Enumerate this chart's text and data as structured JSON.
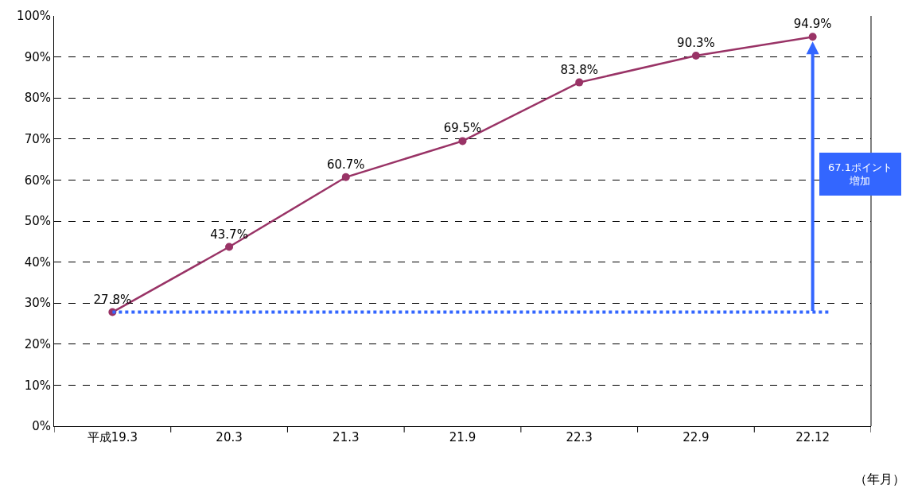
{
  "chart_data": {
    "type": "line",
    "xlabel": "（年月）",
    "categories": [
      "平成19.3",
      "20.3",
      "21.3",
      "21.9",
      "22.3",
      "22.9",
      "22.12"
    ],
    "series": [
      {
        "color": "#993366",
        "values": [
          27.8,
          43.7,
          60.7,
          69.5,
          83.8,
          90.3,
          94.9
        ]
      }
    ],
    "ylim": [
      0,
      100
    ],
    "yticks": [
      {
        "value": 0,
        "label": "0%"
      },
      {
        "value": 10,
        "label": "10%"
      },
      {
        "value": 20,
        "label": "20%"
      },
      {
        "value": 30,
        "label": "30%"
      },
      {
        "value": 40,
        "label": "40%"
      },
      {
        "value": 50,
        "label": "50%"
      },
      {
        "value": 60,
        "label": "60%"
      },
      {
        "value": 70,
        "label": "70%"
      },
      {
        "value": 80,
        "label": "80%"
      },
      {
        "value": 90,
        "label": "90%"
      },
      {
        "value": 100,
        "label": "100%"
      }
    ],
    "value_labels": [
      "27.8%",
      "43.7%",
      "60.7%",
      "69.5%",
      "83.8%",
      "90.3%",
      "94.9%"
    ],
    "grid": "y",
    "marker": "circle",
    "line_style": "solid",
    "ref_lines": [
      {
        "axis": "y",
        "value": 27.8,
        "color": "#3366ff",
        "line_style": "dotted"
      }
    ],
    "annotations": [
      "67.1ポイント増加"
    ]
  }
}
